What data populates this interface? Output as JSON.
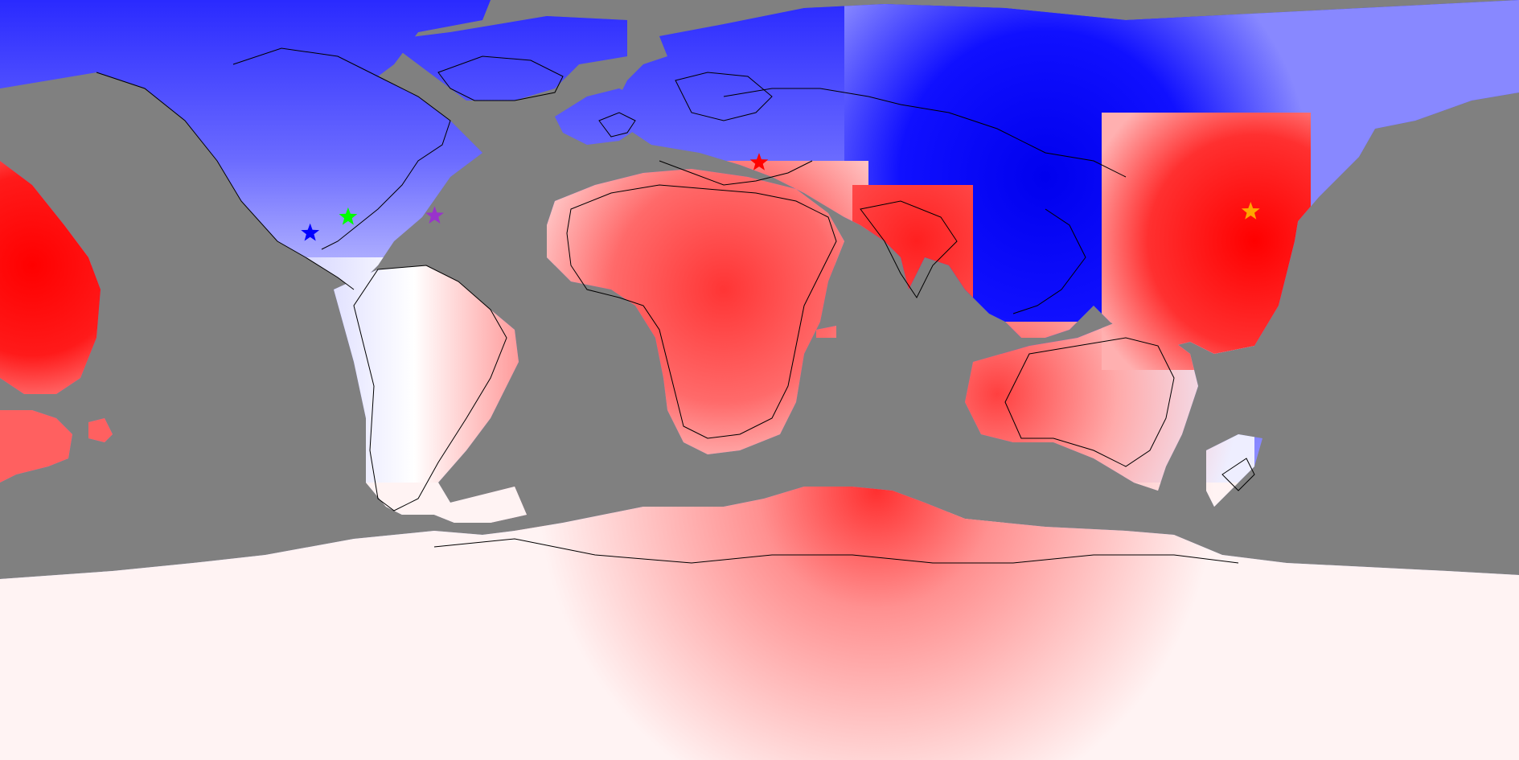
{
  "map": {
    "projection": "equirectangular",
    "ocean_mask_color": "#808080",
    "coastline_color": "#000000",
    "colormap": {
      "negative": "#0000ff",
      "neutral": "#ffffff",
      "positive": "#ff0000",
      "levels": 10
    },
    "markers": [
      {
        "name": "london-marker",
        "color": "#ff0000",
        "lat": 51.5,
        "lon": -0.1
      },
      {
        "name": "dc-marker",
        "color": "#9933cc",
        "lat": 38.9,
        "lon": -77.0
      },
      {
        "name": "kansas-marker",
        "color": "#00ff00",
        "lat": 38.6,
        "lon": -97.5
      },
      {
        "name": "colorado-marker",
        "color": "#0000ff",
        "lat": 34.8,
        "lon": -106.5
      },
      {
        "name": "beijing-marker",
        "color": "#ffa500",
        "lat": 39.9,
        "lon": 116.4
      }
    ]
  }
}
